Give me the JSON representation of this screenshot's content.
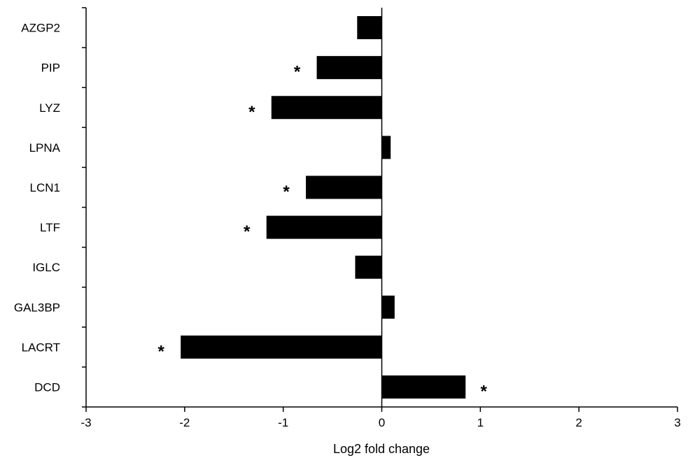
{
  "chart_data": {
    "type": "bar",
    "orientation": "horizontal",
    "title": "",
    "xlabel": "Log2 fold change",
    "ylabel": "",
    "xlim": [
      -3,
      3
    ],
    "xticks": [
      "-3",
      "-2",
      "-1",
      "0",
      "1",
      "2",
      "3"
    ],
    "grid": false,
    "legend": "none",
    "bar_color": "#000000",
    "categories": [
      "AZGP2",
      "PIP",
      "LYZ",
      "LPNA",
      "LCN1",
      "LTF",
      "IGLC",
      "GAL3BP",
      "LACRT",
      "DCD"
    ],
    "values": [
      -0.25,
      -0.66,
      -1.12,
      0.09,
      -0.77,
      -1.17,
      -0.27,
      0.13,
      -2.04,
      0.85
    ],
    "significance": [
      "",
      "*",
      "*",
      "",
      "*",
      "*",
      "",
      "",
      "*",
      "*"
    ]
  }
}
